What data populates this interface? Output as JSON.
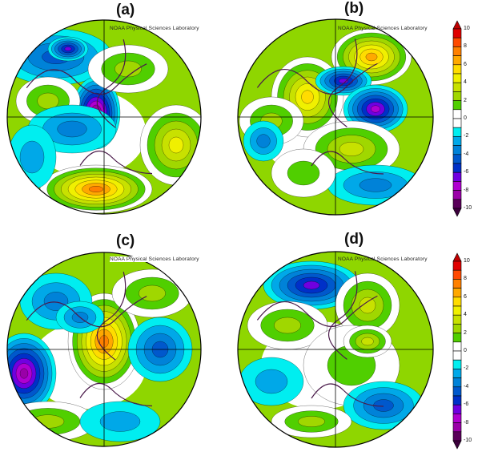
{
  "panels": [
    {
      "label": "(a)",
      "watermark": "NOAA Physical Sciences Laboratory"
    },
    {
      "label": "(b)",
      "watermark": "NOAA Physical Sciences Laboratory"
    },
    {
      "label": "(c)",
      "watermark": "NOAA Physical Sciences Laboratory"
    },
    {
      "label": "(d)",
      "watermark": "NOAA Physical Sciences Laboratory"
    }
  ],
  "colorbar": {
    "ticks": [
      "10",
      "8",
      "6",
      "4",
      "2",
      "0",
      "-2",
      "-4",
      "-6",
      "-8",
      "-10"
    ],
    "colors_top_to_bottom": [
      "#e00000",
      "#ff4a00",
      "#ff8000",
      "#ffa800",
      "#ffdc00",
      "#f0f000",
      "#c8e100",
      "#a0d700",
      "#50cf00",
      "#ffffff",
      "#ffffff",
      "#00eef0",
      "#00a8e8",
      "#0082d8",
      "#0058cc",
      "#0030c8",
      "#7000e0",
      "#b000d0",
      "#9a00a8",
      "#5a005a"
    ],
    "max_color": "#c00000",
    "min_color": "#3c003c"
  }
}
